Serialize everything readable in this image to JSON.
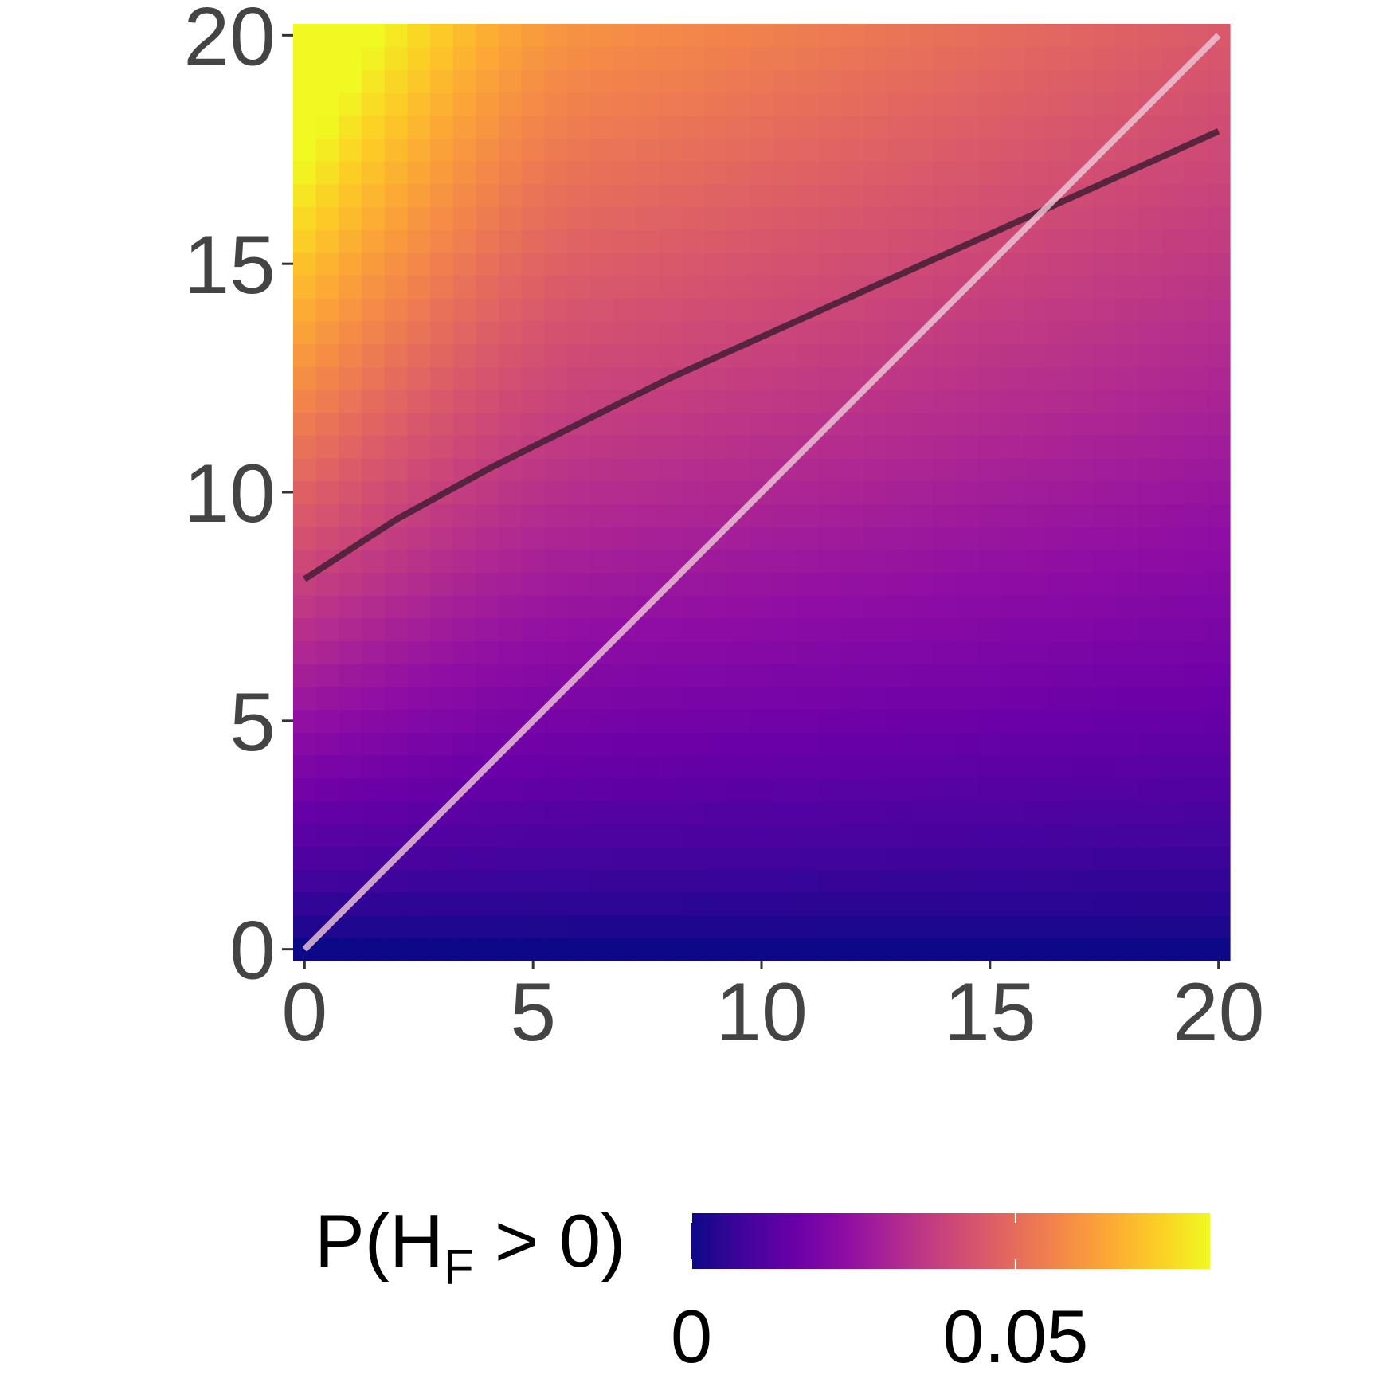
{
  "chart_data": {
    "type": "heatmap",
    "title": "",
    "xlabel": "",
    "ylabel": "",
    "xlim": [
      -0.25,
      20.25
    ],
    "ylim": [
      -0.25,
      20.25
    ],
    "x_ticks": [
      "0",
      "5",
      "10",
      "15",
      "20"
    ],
    "y_ticks": [
      "0",
      "5",
      "10",
      "15",
      "20"
    ],
    "grid": false,
    "colormap": "plasma",
    "color_range": [
      0,
      0.08
    ],
    "fill_description": "probability increases toward the top-left corner (max ~0.08 at x=0, y=20) and is ~0 along the bottom edge",
    "corner_values": {
      "x0_y0": 0.0,
      "x20_y0": 0.0,
      "x0_y20": 0.08,
      "x20_y20": 0.045
    },
    "lines": [
      {
        "color": "#4a2038",
        "x": [
          0,
          2,
          4,
          6,
          8,
          10,
          12,
          14,
          16,
          18,
          20
        ],
        "y": [
          8.1,
          9.4,
          10.5,
          11.5,
          12.5,
          13.4,
          14.3,
          15.2,
          16.1,
          17.0,
          17.9
        ]
      },
      {
        "color": "#f0c8da",
        "x": [
          0,
          20
        ],
        "y": [
          0,
          20
        ]
      }
    ],
    "legend": {
      "title_main": "P(H",
      "title_sub": "F",
      "title_rest": " > 0)",
      "tick_labels": [
        "0",
        "0.05"
      ],
      "tick_values": [
        0,
        0.05
      ],
      "placement": "bottom"
    }
  }
}
